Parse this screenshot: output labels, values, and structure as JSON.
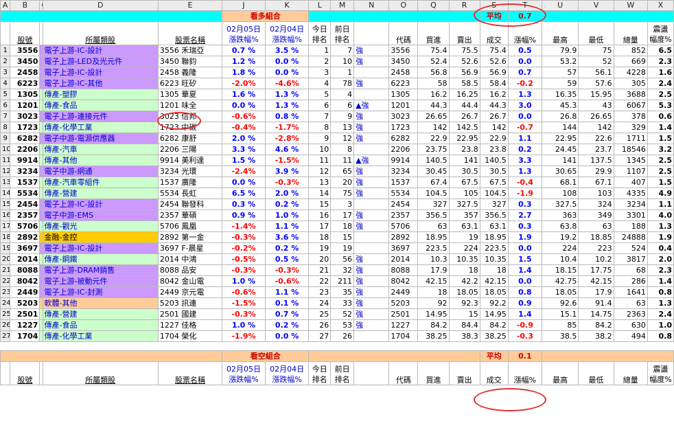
{
  "col_letters": [
    "A",
    "B",
    "C",
    "D",
    "E",
    "J",
    "K",
    "L",
    "M",
    "N",
    "O",
    "Q",
    "R",
    "S",
    "T",
    "U",
    "V",
    "W",
    "X"
  ],
  "bull": {
    "title": "看多組合",
    "avg_label": "平均",
    "avg_value": "0.7",
    "headers": {
      "code": "股號",
      "category": "所屬類股",
      "name": "股票名稱",
      "d1_top": "02月05日",
      "d1_bot": "漲跌幅%",
      "d2_top": "02月04日",
      "d2_bot": "漲跌幅%",
      "rank_today_top": "今日",
      "rank_today_bot": "排名",
      "rank_prev_top": "前日",
      "rank_prev_bot": "排名",
      "ticker": "代碼",
      "bid": "買進",
      "ask": "賣出",
      "deal": "成交",
      "chg": "漲幅%",
      "high": "最高",
      "low": "最低",
      "vol": "總量",
      "spread_top": "震盪",
      "spread_bot": "幅度%"
    },
    "rows": [
      {
        "n": "1",
        "code": "3556",
        "cat": "電子上游-IC-設計",
        "ct": "ic",
        "name": "3556 禾瑞亞",
        "d1": "0.7 %",
        "d2": "3.5 %",
        "r1": "1",
        "r2": "7",
        "sig": "強",
        "tk": "3556",
        "bid": "75.4",
        "ask": "75.5",
        "deal": "75.4",
        "chg": "0.5",
        "hi": "79.9",
        "lo": "75",
        "vol": "852",
        "sp": "6.5"
      },
      {
        "n": "2",
        "code": "3450",
        "cat": "電子上游-LED及光元件",
        "ct": "ele",
        "name": "3450 聯鈞",
        "d1": "1.2 %",
        "d2": "0.0 %",
        "r1": "2",
        "r2": "10",
        "sig": "強",
        "tk": "3450",
        "bid": "52.4",
        "ask": "52.6",
        "deal": "52.6",
        "chg": "0.0",
        "hi": "53.2",
        "lo": "52",
        "vol": "669",
        "sp": "2.3"
      },
      {
        "n": "3",
        "code": "2458",
        "cat": "電子上游-IC-設計",
        "ct": "ic",
        "name": "2458 義隆",
        "d1": "1.8 %",
        "d2": "0.0 %",
        "r1": "3",
        "r2": "1",
        "sig": "",
        "tk": "2458",
        "bid": "56.8",
        "ask": "56.9",
        "deal": "56.9",
        "chg": "0.7",
        "hi": "57",
        "lo": "56.1",
        "vol": "4228",
        "sp": "1.6"
      },
      {
        "n": "4",
        "code": "6223",
        "cat": "電子上游-IC-其他",
        "ct": "ic",
        "name": "6223 旺矽",
        "d1": "-2.0%",
        "d2": "-4.6%",
        "r1": "4",
        "r2": "78",
        "sig": "強",
        "tk": "6223",
        "bid": "58",
        "ask": "58.5",
        "deal": "58.4",
        "chg": "-0.2",
        "hi": "59",
        "lo": "57.6",
        "vol": "305",
        "sp": "2.4"
      },
      {
        "n": "5",
        "code": "1305",
        "cat": "傳產-塑膠",
        "ct": "tr",
        "name": "1305 華夏",
        "d1": "1.6 %",
        "d2": "1.3 %",
        "r1": "5",
        "r2": "4",
        "sig": "",
        "tk": "1305",
        "bid": "16.2",
        "ask": "16.25",
        "deal": "16.2",
        "chg": "1.3",
        "hi": "16.35",
        "lo": "15.95",
        "vol": "3688",
        "sp": "2.5"
      },
      {
        "n": "6",
        "code": "1201",
        "cat": "傳產-食品",
        "ct": "tr",
        "name": "1201 味全",
        "d1": "0.0 %",
        "d2": "1.3 %",
        "r1": "6",
        "r2": "6",
        "sig": "▲強",
        "tk": "1201",
        "bid": "44.3",
        "ask": "44.4",
        "deal": "44.3",
        "chg": "3.0",
        "hi": "45.3",
        "lo": "43",
        "vol": "6067",
        "sp": "5.3"
      },
      {
        "n": "7",
        "code": "3023",
        "cat": "電子上游-連接元件",
        "ct": "ele",
        "name": "3023 信邦",
        "d1": "-0.6%",
        "d2": "0.8 %",
        "r1": "7",
        "r2": "9",
        "sig": "強",
        "tk": "3023",
        "bid": "26.65",
        "ask": "26.7",
        "deal": "26.7",
        "chg": "0.0",
        "hi": "26.8",
        "lo": "26.65",
        "vol": "378",
        "sp": "0.6"
      },
      {
        "n": "8",
        "code": "1723",
        "cat": "傳產-化學工業",
        "ct": "tr",
        "name": "1723 中碳",
        "d1": "-0.4%",
        "d2": "-1.7%",
        "r1": "8",
        "r2": "13",
        "sig": "強",
        "tk": "1723",
        "bid": "142",
        "ask": "142.5",
        "deal": "142",
        "chg": "-0.7",
        "hi": "144",
        "lo": "142",
        "vol": "329",
        "sp": "1.4"
      },
      {
        "n": "9",
        "code": "6282",
        "cat": "電子中游-電源供應器",
        "ct": "ele",
        "name": "6282 康舒",
        "d1": "2.0 %",
        "d2": "-2.8%",
        "r1": "9",
        "r2": "12",
        "sig": "強",
        "tk": "6282",
        "bid": "22.9",
        "ask": "22.95",
        "deal": "22.9",
        "chg": "1.1",
        "hi": "22.95",
        "lo": "22.6",
        "vol": "1711",
        "sp": "1.5"
      },
      {
        "n": "10",
        "code": "2206",
        "cat": "傳產-汽車",
        "ct": "tr",
        "name": "2206 三陽",
        "d1": "3.3 %",
        "d2": "4.6 %",
        "r1": "10",
        "r2": "8",
        "sig": "",
        "tk": "2206",
        "bid": "23.75",
        "ask": "23.8",
        "deal": "23.8",
        "chg": "0.2",
        "hi": "24.45",
        "lo": "23.7",
        "vol": "18546",
        "sp": "3.2"
      },
      {
        "n": "11",
        "code": "9914",
        "cat": "傳產-其他",
        "ct": "tr",
        "name": "9914 美利達",
        "d1": "1.5 %",
        "d2": "-1.5%",
        "r1": "11",
        "r2": "11",
        "sig": "▲強",
        "tk": "9914",
        "bid": "140.5",
        "ask": "141",
        "deal": "140.5",
        "chg": "3.3",
        "hi": "141",
        "lo": "137.5",
        "vol": "1345",
        "sp": "2.5"
      },
      {
        "n": "12",
        "code": "3234",
        "cat": "電子中游-網通",
        "ct": "ele",
        "name": "3234 光環",
        "d1": "-2.4%",
        "d2": "3.9 %",
        "r1": "12",
        "r2": "65",
        "sig": "強",
        "tk": "3234",
        "bid": "30.45",
        "ask": "30.5",
        "deal": "30.5",
        "chg": "1.3",
        "hi": "30.65",
        "lo": "29.9",
        "vol": "1107",
        "sp": "2.5"
      },
      {
        "n": "13",
        "code": "1537",
        "cat": "傳產-汽車零組件",
        "ct": "tr",
        "name": "1537 廣隆",
        "d1": "0.0 %",
        "d2": "-0.3%",
        "r1": "13",
        "r2": "20",
        "sig": "強",
        "tk": "1537",
        "bid": "67.4",
        "ask": "67.5",
        "deal": "67.5",
        "chg": "-0.4",
        "hi": "68.1",
        "lo": "67.1",
        "vol": "407",
        "sp": "1.5"
      },
      {
        "n": "14",
        "code": "5534",
        "cat": "傳產-營建",
        "ct": "tr",
        "name": "5534 長虹",
        "d1": "6.5 %",
        "d2": "2.0 %",
        "r1": "14",
        "r2": "75",
        "sig": "強",
        "tk": "5534",
        "bid": "104.5",
        "ask": "105",
        "deal": "104.5",
        "chg": "-1.9",
        "hi": "108",
        "lo": "103",
        "vol": "4335",
        "sp": "4.9"
      },
      {
        "n": "15",
        "code": "2454",
        "cat": "電子上游-IC-設計",
        "ct": "ic",
        "name": "2454 聯發科",
        "d1": "0.3 %",
        "d2": "0.2 %",
        "r1": "15",
        "r2": "3",
        "sig": "",
        "tk": "2454",
        "bid": "327",
        "ask": "327.5",
        "deal": "327",
        "chg": "0.3",
        "hi": "327.5",
        "lo": "324",
        "vol": "3234",
        "sp": "1.1"
      },
      {
        "n": "16",
        "code": "2357",
        "cat": "電子中游-EMS",
        "ct": "ele",
        "name": "2357 華碩",
        "d1": "0.9 %",
        "d2": "1.0 %",
        "r1": "16",
        "r2": "17",
        "sig": "強",
        "tk": "2357",
        "bid": "356.5",
        "ask": "357",
        "deal": "356.5",
        "chg": "2.7",
        "hi": "363",
        "lo": "349",
        "vol": "3301",
        "sp": "4.0"
      },
      {
        "n": "17",
        "code": "5706",
        "cat": "傳產-觀光",
        "ct": "tr",
        "name": "5706 鳳凰",
        "d1": "-1.4%",
        "d2": "1.1 %",
        "r1": "17",
        "r2": "18",
        "sig": "強",
        "tk": "5706",
        "bid": "63",
        "ask": "63.1",
        "deal": "63.1",
        "chg": "0.3",
        "hi": "63.8",
        "lo": "63",
        "vol": "188",
        "sp": "1.3"
      },
      {
        "n": "18",
        "code": "2892",
        "cat": "金融-金控",
        "ct": "fin",
        "name": "2892 第一金",
        "d1": "-0.3%",
        "d2": "3.6 %",
        "r1": "18",
        "r2": "15",
        "sig": "",
        "tk": "2892",
        "bid": "18.95",
        "ask": "19",
        "deal": "18.95",
        "chg": "1.9",
        "hi": "19.2",
        "lo": "18.85",
        "vol": "24888",
        "sp": "1.9"
      },
      {
        "n": "19",
        "code": "3697",
        "cat": "電子上游-IC-設計",
        "ct": "ic",
        "name": "3697 F-晨星",
        "d1": "-0.2%",
        "d2": "0.2 %",
        "r1": "19",
        "r2": "19",
        "sig": "",
        "tk": "3697",
        "bid": "223.5",
        "ask": "224",
        "deal": "223.5",
        "chg": "0.0",
        "hi": "224",
        "lo": "223",
        "vol": "524",
        "sp": "0.4"
      },
      {
        "n": "20",
        "code": "2014",
        "cat": "傳產-鋼鐵",
        "ct": "tr",
        "name": "2014 中鴻",
        "d1": "-0.5%",
        "d2": "0.5 %",
        "r1": "20",
        "r2": "56",
        "sig": "強",
        "tk": "2014",
        "bid": "10.3",
        "ask": "10.35",
        "deal": "10.35",
        "chg": "1.5",
        "hi": "10.4",
        "lo": "10.2",
        "vol": "3817",
        "sp": "2.0"
      },
      {
        "n": "21",
        "code": "8088",
        "cat": "電子上游-DRAM銷售",
        "ct": "ic",
        "name": "8088 品安",
        "d1": "-0.3%",
        "d2": "-0.3%",
        "r1": "21",
        "r2": "32",
        "sig": "強",
        "tk": "8088",
        "bid": "17.9",
        "ask": "18",
        "deal": "18",
        "chg": "1.4",
        "hi": "18.15",
        "lo": "17.75",
        "vol": "68",
        "sp": "2.3"
      },
      {
        "n": "22",
        "code": "8042",
        "cat": "電子上游-被動元件",
        "ct": "ele",
        "name": "8042 金山電",
        "d1": "1.0 %",
        "d2": "-0.6%",
        "r1": "22",
        "r2": "211",
        "sig": "強",
        "tk": "8042",
        "bid": "42.15",
        "ask": "42.2",
        "deal": "42.15",
        "chg": "0.0",
        "hi": "42.75",
        "lo": "42.15",
        "vol": "286",
        "sp": "1.4"
      },
      {
        "n": "23",
        "code": "2449",
        "cat": "電子上游-IC-封測",
        "ct": "ic",
        "name": "2449 京元電",
        "d1": "-0.6%",
        "d2": "1.1 %",
        "r1": "23",
        "r2": "35",
        "sig": "強",
        "tk": "2449",
        "bid": "18",
        "ask": "18.05",
        "deal": "18.05",
        "chg": "0.8",
        "hi": "18.05",
        "lo": "17.9",
        "vol": "1641",
        "sp": "0.8"
      },
      {
        "n": "24",
        "code": "5203",
        "cat": "軟體-其他",
        "ct": "soft",
        "name": "5203 訊連",
        "d1": "-1.5%",
        "d2": "0.1 %",
        "r1": "24",
        "r2": "33",
        "sig": "強",
        "tk": "5203",
        "bid": "92",
        "ask": "92.3",
        "deal": "92.2",
        "chg": "0.9",
        "hi": "92.6",
        "lo": "91.4",
        "vol": "63",
        "sp": "1.3"
      },
      {
        "n": "25",
        "code": "2501",
        "cat": "傳產-營建",
        "ct": "tr",
        "name": "2501 國建",
        "d1": "-0.3%",
        "d2": "0.7 %",
        "r1": "25",
        "r2": "52",
        "sig": "強",
        "tk": "2501",
        "bid": "14.95",
        "ask": "15",
        "deal": "14.95",
        "chg": "1.4",
        "hi": "15.1",
        "lo": "14.75",
        "vol": "2363",
        "sp": "2.4"
      },
      {
        "n": "26",
        "code": "1227",
        "cat": "傳產-食品",
        "ct": "tr",
        "name": "1227 佳格",
        "d1": "1.0 %",
        "d2": "0.2 %",
        "r1": "26",
        "r2": "53",
        "sig": "強",
        "tk": "1227",
        "bid": "84.2",
        "ask": "84.4",
        "deal": "84.2",
        "chg": "-0.9",
        "hi": "85",
        "lo": "84.2",
        "vol": "630",
        "sp": "1.0"
      },
      {
        "n": "27",
        "code": "1704",
        "cat": "傳產-化學工業",
        "ct": "tr",
        "name": "1704 榮化",
        "d1": "-1.9%",
        "d2": "0.0 %",
        "r1": "27",
        "r2": "26",
        "sig": "",
        "tk": "1704",
        "bid": "38.25",
        "ask": "38.3",
        "deal": "38.25",
        "chg": "-0.3",
        "hi": "38.5",
        "lo": "38.2",
        "vol": "494",
        "sp": "0.8"
      }
    ]
  },
  "bear": {
    "title": "看空組合",
    "avg_label": "平均",
    "avg_value": "0.1"
  }
}
